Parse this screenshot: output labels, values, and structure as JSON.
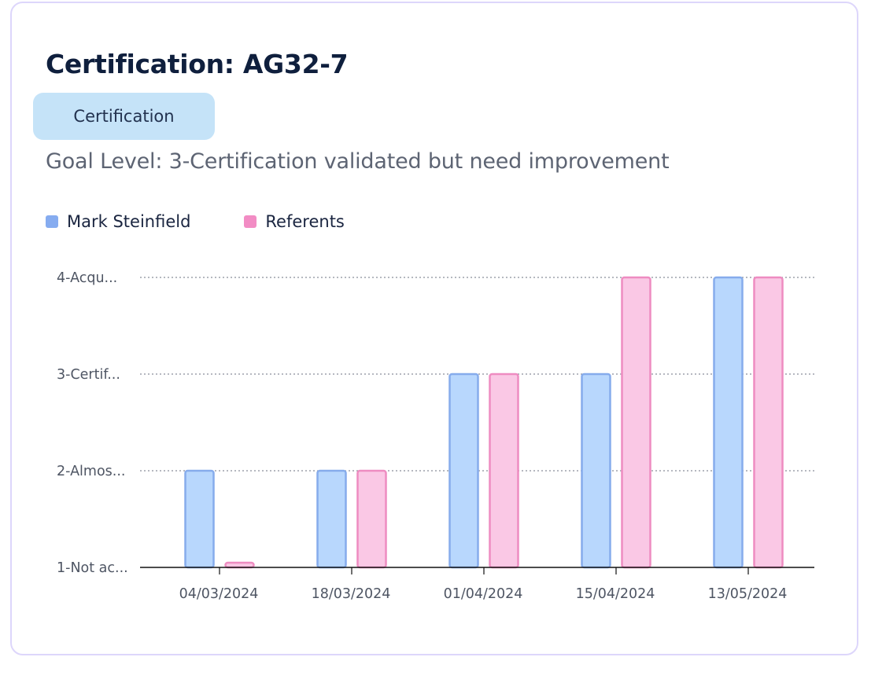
{
  "card": {
    "title": "Certification: AG32-7",
    "tag": "Certification",
    "goal_level": "Goal Level: 3-Certification validated but need improvement"
  },
  "colors": {
    "series_a_fill": "#b8d7fd",
    "series_a_stroke": "#86acec",
    "series_b_fill": "#fac8e5",
    "series_b_stroke": "#ee8cc1",
    "legend_a": "#86acf0",
    "legend_b": "#f28cc4",
    "grid": "#6b7280",
    "axis": "#111111"
  },
  "chart_data": {
    "type": "bar",
    "categories": [
      "04/03/2024",
      "18/03/2024",
      "01/04/2024",
      "15/04/2024",
      "13/05/2024"
    ],
    "y_ticks": [
      {
        "value": 1,
        "label": "1-Not ac..."
      },
      {
        "value": 2,
        "label": "2-Almos..."
      },
      {
        "value": 3,
        "label": "3-Certif..."
      },
      {
        "value": 4,
        "label": "4-Acqu..."
      }
    ],
    "ylim": [
      1,
      4
    ],
    "grid": true,
    "legend_position": "top-left",
    "series": [
      {
        "name": "Mark Steinfield",
        "values": [
          2,
          2,
          3,
          3,
          4
        ]
      },
      {
        "name": "Referents",
        "values": [
          1,
          2,
          3,
          4,
          4
        ]
      }
    ]
  }
}
